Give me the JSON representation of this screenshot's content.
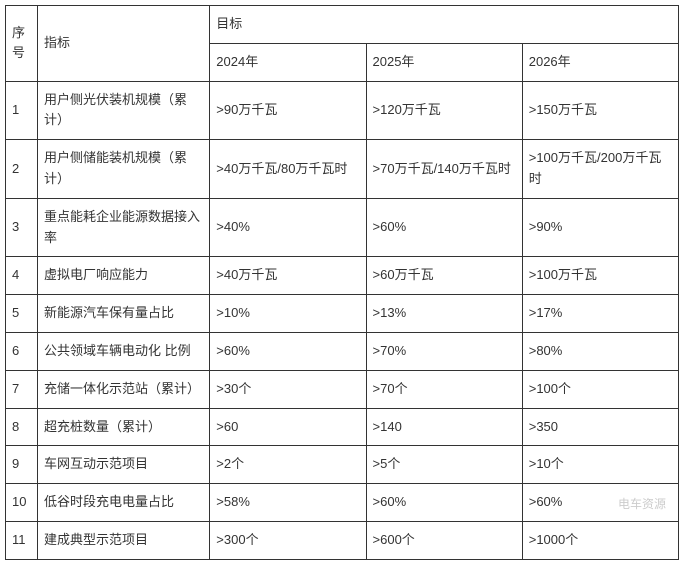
{
  "table": {
    "headers": {
      "seq": "序号",
      "indicator": "指标",
      "target": "目标",
      "year1": "2024年",
      "year2": "2025年",
      "year3": "2026年"
    },
    "rows": [
      {
        "seq": "1",
        "indicator": "用户侧光伏装机规模（累计）",
        "y1": ">90万千瓦",
        "y2": ">120万千瓦",
        "y3": ">150万千瓦"
      },
      {
        "seq": "2",
        "indicator": "用户侧储能装机规模（累计）",
        "y1": ">40万千瓦/80万千瓦时",
        "y2": ">70万千瓦/140万千瓦时",
        "y3": ">100万千瓦/200万千瓦时"
      },
      {
        "seq": "3",
        "indicator": "重点能耗企业能源数据接入率",
        "y1": ">40%",
        "y2": ">60%",
        "y3": ">90%"
      },
      {
        "seq": "4",
        "indicator": "虚拟电厂响应能力",
        "y1": ">40万千瓦",
        "y2": ">60万千瓦",
        "y3": ">100万千瓦"
      },
      {
        "seq": "5",
        "indicator": "新能源汽车保有量占比",
        "y1": ">10%",
        "y2": ">13%",
        "y3": ">17%"
      },
      {
        "seq": "6",
        "indicator": "公共领域车辆电动化 比例",
        "y1": ">60%",
        "y2": ">70%",
        "y3": ">80%"
      },
      {
        "seq": "7",
        "indicator": "充储一体化示范站（累计）",
        "y1": ">30个",
        "y2": ">70个",
        "y3": ">100个"
      },
      {
        "seq": "8",
        "indicator": "超充桩数量（累计）",
        "y1": ">60",
        "y2": ">140",
        "y3": ">350"
      },
      {
        "seq": "9",
        "indicator": "车网互动示范项目",
        "y1": ">2个",
        "y2": ">5个",
        "y3": ">10个"
      },
      {
        "seq": "10",
        "indicator": "低谷时段充电电量占比",
        "y1": ">58%",
        "y2": ">60%",
        "y3": ">60%"
      },
      {
        "seq": "11",
        "indicator": "建成典型示范项目",
        "y1": ">300个",
        "y2": ">600个",
        "y3": ">1000个"
      }
    ]
  },
  "watermark": "电车资源",
  "styling": {
    "border_color": "#333333",
    "text_color": "#333333",
    "background_color": "#ffffff",
    "watermark_color": "#cccccc",
    "font_size": 13,
    "col_widths": {
      "seq": 32,
      "indicator": 172,
      "year": 156
    }
  }
}
